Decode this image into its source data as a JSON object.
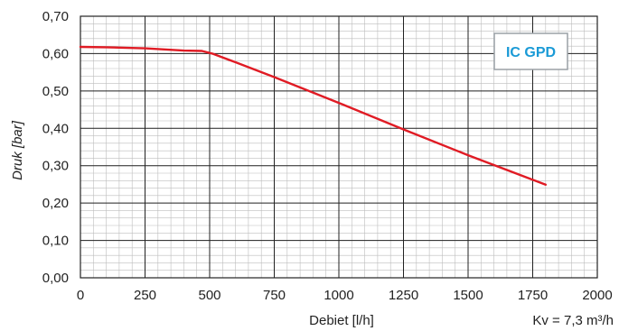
{
  "chart_data": {
    "type": "line",
    "ylabel": "Druk [bar]",
    "xlabel": "Debiet [l/h]",
    "xlim": [
      0,
      2000
    ],
    "ylim": [
      0,
      0.7
    ],
    "x_ticks": [
      0,
      250,
      500,
      750,
      1000,
      1250,
      1500,
      1750,
      2000
    ],
    "x_tick_labels": [
      "0",
      "250",
      "500",
      "750",
      "1000",
      "1250",
      "1500",
      "1750",
      "2000"
    ],
    "y_ticks": [
      0,
      0.1,
      0.2,
      0.3,
      0.4,
      0.5,
      0.6,
      0.7
    ],
    "y_tick_labels": [
      "0,00",
      "0,10",
      "0,20",
      "0,30",
      "0,40",
      "0,50",
      "0,60",
      "0,70"
    ],
    "grid": true,
    "series": [
      {
        "color": "#e01b24",
        "points": [
          [
            0,
            0.618
          ],
          [
            100,
            0.617
          ],
          [
            250,
            0.614
          ],
          [
            400,
            0.608
          ],
          [
            470,
            0.607
          ],
          [
            510,
            0.6
          ],
          [
            600,
            0.577
          ],
          [
            750,
            0.537
          ],
          [
            1000,
            0.468
          ],
          [
            1250,
            0.397
          ],
          [
            1500,
            0.328
          ],
          [
            1800,
            0.249
          ]
        ]
      }
    ],
    "badge": "IC GPD",
    "badge_color": "#1a9ad6",
    "note": "Kv = 7,3 m³/h"
  }
}
